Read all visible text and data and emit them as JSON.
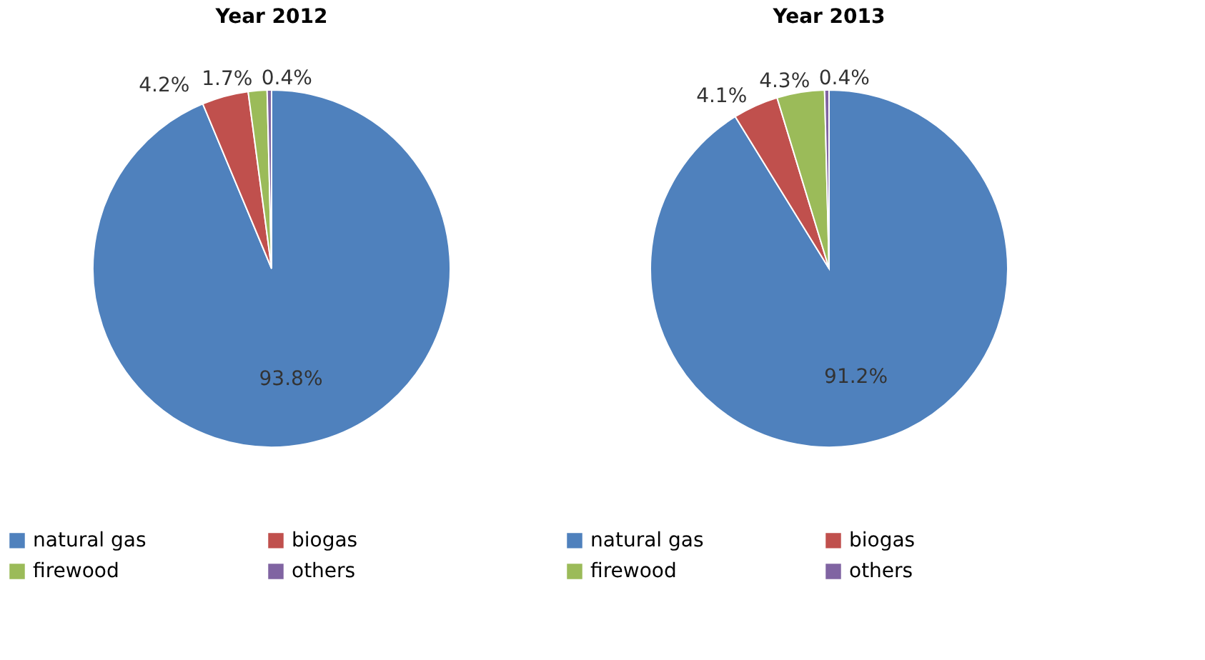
{
  "chart_data": [
    {
      "type": "pie",
      "title": "Year 2012",
      "categories": [
        "natural gas",
        "biogas",
        "firewood",
        "others"
      ],
      "values": [
        93.8,
        4.2,
        1.7,
        0.4
      ],
      "colors": [
        "#4f81bd",
        "#c0504d",
        "#9bbb59",
        "#8064a2"
      ],
      "value_labels": [
        "93.8%",
        "4.2%",
        "1.7%",
        "0.4%"
      ],
      "legend": "bottom"
    },
    {
      "type": "pie",
      "title": "Year 2013",
      "categories": [
        "natural gas",
        "biogas",
        "firewood",
        "others"
      ],
      "values": [
        91.2,
        4.1,
        4.3,
        0.4
      ],
      "colors": [
        "#4f81bd",
        "#c0504d",
        "#9bbb59",
        "#8064a2"
      ],
      "value_labels": [
        "91.2%",
        "4.1%",
        "4.3%",
        "0.4%"
      ],
      "legend": "bottom"
    }
  ]
}
